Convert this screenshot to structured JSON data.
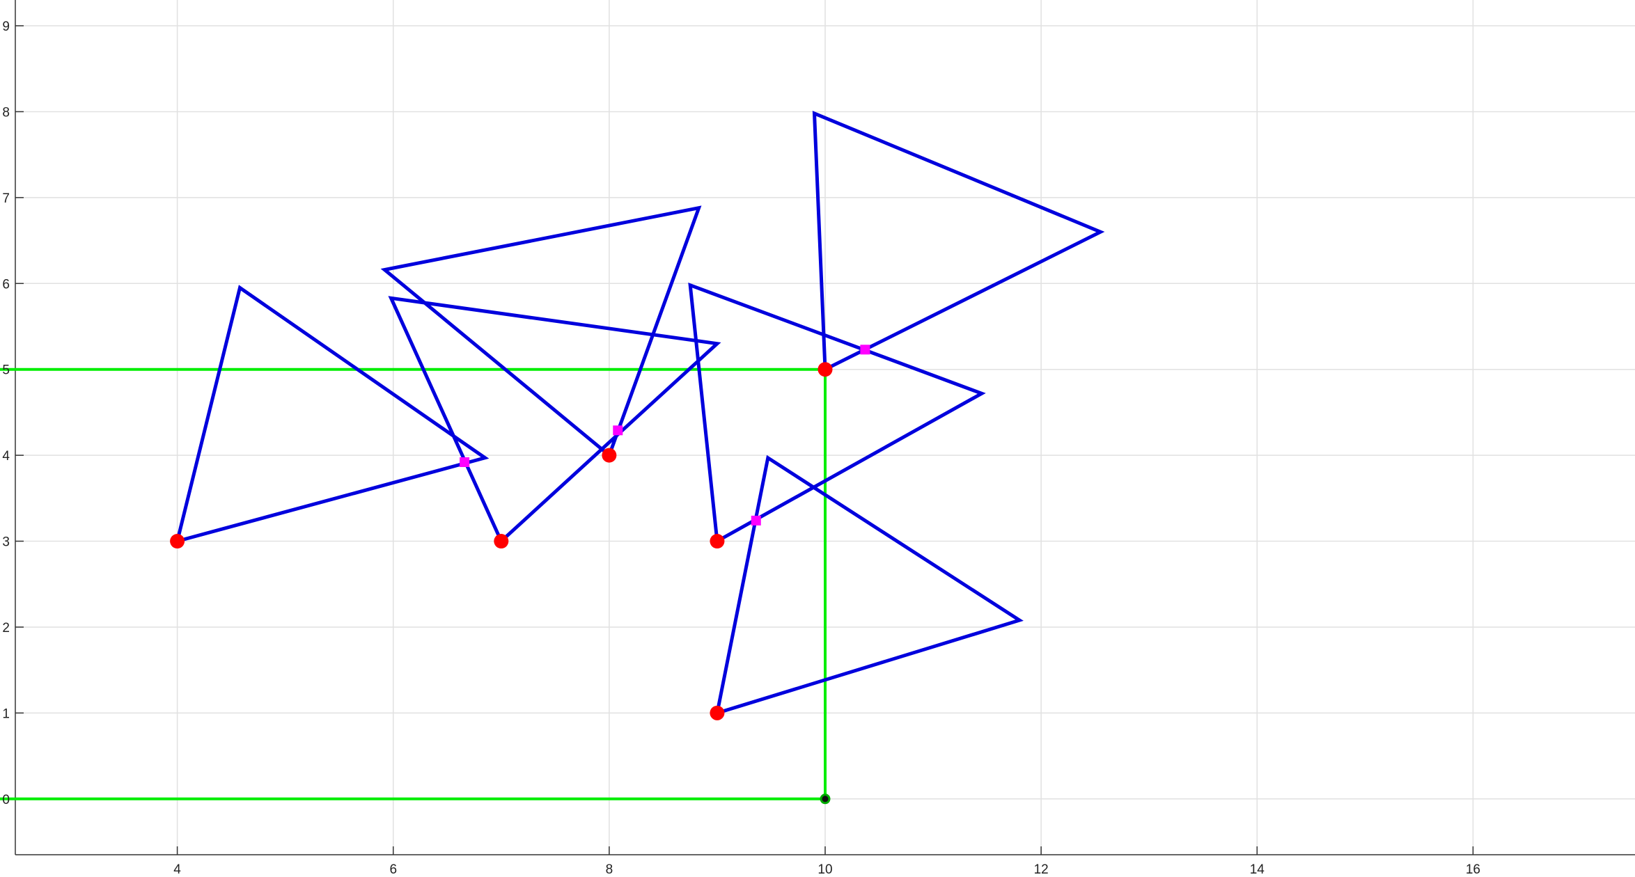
{
  "chart_data": {
    "type": "line",
    "title": "",
    "xlabel": "",
    "ylabel": "",
    "xlim": [
      2.5,
      17.5
    ],
    "ylim": [
      -0.65,
      9.3
    ],
    "x_ticks": [
      4,
      6,
      8,
      10,
      12,
      14,
      16
    ],
    "y_ticks": [
      0,
      1,
      2,
      3,
      4,
      5,
      6,
      7,
      8,
      9
    ],
    "grid": true,
    "legend": "none",
    "colors": {
      "triangle": "#0000dd",
      "boundary": "#00ee00",
      "vertex": "#ff0000",
      "intersection": "#ff00ff",
      "origin_marker": "#00aa00"
    },
    "series": [
      {
        "x": [
          0,
          10,
          10,
          0
        ],
        "y": [
          0,
          0,
          5,
          5
        ],
        "kind": "boundary"
      },
      {
        "x": [
          4,
          4.58,
          6.85,
          4
        ],
        "y": [
          3,
          5.95,
          3.97,
          3
        ],
        "kind": "triangle"
      },
      {
        "x": [
          7,
          5.98,
          9,
          7
        ],
        "y": [
          3,
          5.83,
          5.3,
          3
        ],
        "kind": "triangle"
      },
      {
        "x": [
          8,
          8.83,
          5.92,
          8
        ],
        "y": [
          4,
          6.88,
          6.16,
          4
        ],
        "kind": "triangle"
      },
      {
        "x": [
          9,
          8.75,
          11.45,
          9
        ],
        "y": [
          3,
          5.98,
          4.72,
          3
        ],
        "kind": "triangle"
      },
      {
        "x": [
          10,
          9.9,
          12.55,
          10
        ],
        "y": [
          5,
          7.98,
          6.6,
          5
        ],
        "kind": "triangle"
      },
      {
        "x": [
          9,
          9.47,
          11.8,
          9
        ],
        "y": [
          1,
          3.97,
          2.08,
          1
        ],
        "kind": "triangle"
      }
    ],
    "vertices": [
      {
        "x": 4,
        "y": 3
      },
      {
        "x": 7,
        "y": 3
      },
      {
        "x": 8,
        "y": 4
      },
      {
        "x": 9,
        "y": 3
      },
      {
        "x": 10,
        "y": 5
      },
      {
        "x": 9,
        "y": 1
      }
    ],
    "intersections": [
      {
        "x": 6.66,
        "y": 3.92
      },
      {
        "x": 8.08,
        "y": 4.29
      },
      {
        "x": 9.36,
        "y": 3.24
      },
      {
        "x": 10.37,
        "y": 5.23
      }
    ],
    "origin_point": {
      "x": 10,
      "y": 0
    }
  }
}
